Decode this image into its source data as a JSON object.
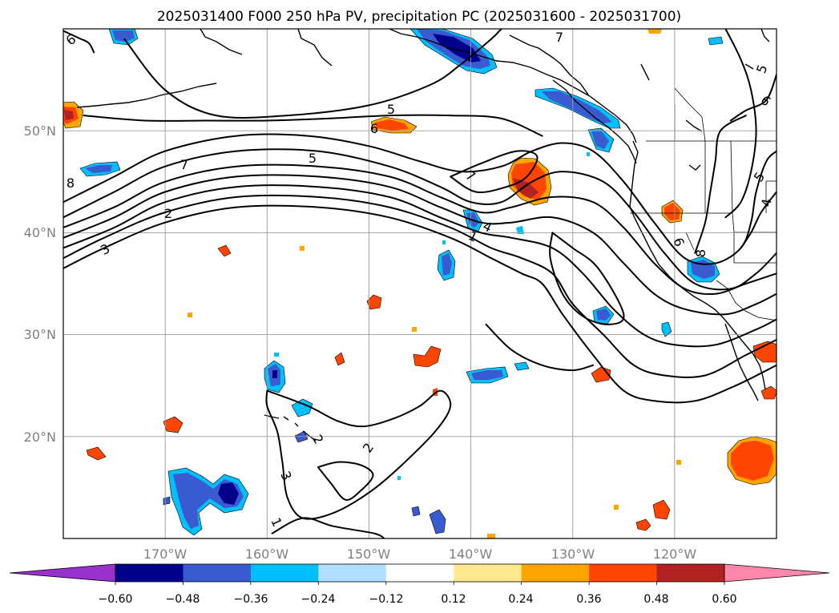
{
  "chart_data": {
    "type": "contour-map",
    "title": "2025031400 F000 250 hPa PV, precipitation PC (2025031600 - 2025031700)",
    "x_ticks": [
      "170°W",
      "160°W",
      "150°W",
      "140°W",
      "130°W",
      "120°W"
    ],
    "y_ticks": [
      "50°N",
      "40°N",
      "30°N",
      "20°N"
    ],
    "lon_range": [
      -180,
      -110
    ],
    "lat_range": [
      10,
      60
    ],
    "grid": true,
    "colorbar": {
      "orientation": "horizontal",
      "extend": "both",
      "levels": [
        -0.6,
        -0.48,
        -0.36,
        -0.24,
        -0.12,
        0.12,
        0.24,
        0.36,
        0.48,
        0.6
      ],
      "tick_labels": [
        "−0.60",
        "−0.48",
        "−0.36",
        "−0.24",
        "−0.12",
        "0.12",
        "0.24",
        "0.36",
        "0.48",
        "0.60"
      ],
      "colors": [
        "#9932cc",
        "#00008b",
        "#3a5bcf",
        "#00bfff",
        "#b0e0ff",
        "#ffffff",
        "#ffe98f",
        "#ffa500",
        "#ff4500",
        "#b22222",
        "#ff88aa"
      ]
    },
    "pv_contour_labels": [
      "6",
      "7",
      "5",
      "6",
      "5",
      "7",
      "2",
      "3",
      "8",
      "7",
      "4",
      "1",
      "6",
      "5",
      "4",
      "6",
      "8",
      "5",
      "2",
      "3",
      "1",
      "2"
    ],
    "pv_contours": [
      {
        "level": 1,
        "points": [
          [
            -180,
            36.5
          ],
          [
            -176,
            38.5
          ],
          [
            -170,
            41
          ],
          [
            -163,
            42.5
          ],
          [
            -155,
            42.5
          ],
          [
            -148,
            41.5
          ],
          [
            -142,
            39.5
          ],
          [
            -138,
            37.5
          ],
          [
            -135,
            36
          ],
          [
            -133,
            35
          ],
          [
            -131,
            32
          ],
          [
            -128,
            28
          ],
          [
            -125,
            24.5
          ],
          [
            -122,
            23.5
          ],
          [
            -118,
            23.5
          ],
          [
            -114,
            25
          ],
          [
            -110,
            27
          ]
        ]
      },
      {
        "level": 2,
        "points": [
          [
            -180,
            37.5
          ],
          [
            -176,
            39.5
          ],
          [
            -170,
            42
          ],
          [
            -163,
            43.5
          ],
          [
            -155,
            43.5
          ],
          [
            -148,
            42.5
          ],
          [
            -142,
            40.5
          ],
          [
            -138,
            38.5
          ],
          [
            -135,
            37.5
          ],
          [
            -132,
            36
          ],
          [
            -130,
            33
          ],
          [
            -127,
            30
          ],
          [
            -124,
            27
          ],
          [
            -121,
            26
          ],
          [
            -117,
            26
          ],
          [
            -113,
            28
          ],
          [
            -110,
            29.5
          ]
        ]
      },
      {
        "level": 3,
        "points": [
          [
            -180,
            38.5
          ],
          [
            -175,
            40.5
          ],
          [
            -170,
            43
          ],
          [
            -163,
            44.5
          ],
          [
            -155,
            44.5
          ],
          [
            -148,
            43.5
          ],
          [
            -143,
            41.5
          ],
          [
            -139,
            40
          ],
          [
            -136,
            39.5
          ],
          [
            -132,
            38.5
          ],
          [
            -129,
            36
          ],
          [
            -126,
            32.5
          ],
          [
            -123,
            30
          ],
          [
            -120,
            29
          ],
          [
            -116,
            29
          ],
          [
            -112,
            30.5
          ],
          [
            -110,
            31.5
          ]
        ]
      },
      {
        "level": 4,
        "points": [
          [
            -180,
            39.5
          ],
          [
            -175,
            41.5
          ],
          [
            -170,
            44
          ],
          [
            -163,
            45.5
          ],
          [
            -155,
            45.5
          ],
          [
            -148,
            44.5
          ],
          [
            -143,
            42.5
          ],
          [
            -139,
            41
          ],
          [
            -136,
            41
          ],
          [
            -132,
            41.5
          ],
          [
            -128,
            40
          ],
          [
            -125,
            37
          ],
          [
            -122,
            34
          ],
          [
            -119,
            32.5
          ],
          [
            -115,
            32
          ],
          [
            -112,
            33
          ],
          [
            -110,
            34
          ]
        ]
      },
      {
        "level": 5,
        "points": [
          [
            -180,
            40.5
          ],
          [
            -175,
            42.5
          ],
          [
            -170,
            45
          ],
          [
            -163,
            46.5
          ],
          [
            -155,
            46.5
          ],
          [
            -148,
            45.5
          ],
          [
            -143,
            43.5
          ],
          [
            -139,
            42
          ],
          [
            -136,
            42.5
          ],
          [
            -132,
            43.5
          ],
          [
            -128,
            43
          ],
          [
            -125,
            40.5
          ],
          [
            -122,
            37
          ],
          [
            -119,
            34.5
          ],
          [
            -116,
            34
          ],
          [
            -113,
            35
          ],
          [
            -110,
            36
          ]
        ]
      },
      {
        "level": 6,
        "points": [
          [
            -180,
            41.5
          ],
          [
            -175,
            44
          ],
          [
            -170,
            46.5
          ],
          [
            -163,
            48
          ],
          [
            -155,
            48
          ],
          [
            -148,
            46.5
          ],
          [
            -143,
            44.5
          ],
          [
            -140,
            43
          ],
          [
            -137,
            43
          ],
          [
            -134,
            45
          ],
          [
            -131,
            46
          ],
          [
            -127,
            45
          ],
          [
            -124,
            42
          ],
          [
            -121,
            38
          ],
          [
            -118,
            35
          ],
          [
            -114.5,
            34.5
          ],
          [
            -112,
            36
          ],
          [
            -110,
            38
          ]
        ]
      },
      {
        "level": 7,
        "points": [
          [
            -180,
            43
          ],
          [
            -175,
            45.5
          ],
          [
            -170,
            48
          ],
          [
            -163,
            49.5
          ],
          [
            -156,
            49.5
          ],
          [
            -150,
            48.5
          ],
          [
            -145,
            47
          ],
          [
            -141,
            46
          ],
          [
            -137,
            46.5
          ],
          [
            -134,
            48
          ],
          [
            -131,
            48.8
          ],
          [
            -128,
            48
          ],
          [
            -125,
            45
          ],
          [
            -122,
            41
          ],
          [
            -119,
            37.5
          ],
          [
            -116,
            37
          ],
          [
            -113.5,
            38.5
          ],
          [
            -112.5,
            41
          ],
          [
            -112,
            44
          ],
          [
            -111,
            47
          ],
          [
            -110,
            48
          ]
        ]
      },
      {
        "level": 5,
        "points": [
          [
            -174,
            59
          ],
          [
            -170,
            54
          ],
          [
            -165,
            51.5
          ],
          [
            -158,
            51.5
          ],
          [
            -150,
            52.5
          ],
          [
            -144,
            54.5
          ],
          [
            -141,
            56.5
          ],
          [
            -138,
            59
          ],
          [
            -137,
            60
          ]
        ]
      },
      {
        "level": 6,
        "points": [
          [
            -178,
            51.5
          ],
          [
            -172,
            51
          ],
          [
            -166,
            51
          ],
          [
            -160,
            51
          ],
          [
            -154,
            51.2
          ],
          [
            -148,
            51.5
          ],
          [
            -142,
            51.5
          ],
          [
            -137,
            51.2
          ],
          [
            -133,
            49.5
          ]
        ]
      },
      {
        "level": 8,
        "points": [
          [
            -118,
            38
          ],
          [
            -117,
            41
          ],
          [
            -116.5,
            44
          ],
          [
            -116,
            47
          ],
          [
            -115.5,
            50
          ],
          [
            -113,
            51.5
          ]
        ]
      },
      {
        "level": 5,
        "points": [
          [
            -115,
            60
          ],
          [
            -113.5,
            57
          ],
          [
            -112.5,
            54
          ],
          [
            -112,
            50
          ],
          [
            -112.5,
            46
          ],
          [
            -113.5,
            43
          ],
          [
            -115,
            41.5
          ]
        ]
      },
      {
        "level": 6,
        "points": [
          [
            -110,
            55.5
          ],
          [
            -111,
            53
          ],
          [
            -113,
            52
          ],
          [
            -114.5,
            51
          ]
        ]
      },
      {
        "level": 7,
        "points": [
          [
            -110,
            44
          ],
          [
            -111.5,
            42
          ],
          [
            -112.5,
            40
          ],
          [
            -113.5,
            38.5
          ]
        ]
      },
      {
        "level": 7,
        "points": [
          [
            -142,
            45.5
          ],
          [
            -139.5,
            44
          ],
          [
            -136.5,
            44.5
          ],
          [
            -134.5,
            45.5
          ],
          [
            -133.5,
            47.5
          ],
          [
            -135.5,
            48
          ],
          [
            -139,
            46.8
          ],
          [
            -142,
            45.5
          ]
        ]
      },
      {
        "level": 1,
        "points": [
          [
            -132,
            40
          ],
          [
            -130,
            38.5
          ],
          [
            -127.5,
            36.5
          ],
          [
            -125,
            32
          ],
          [
            -126.5,
            31
          ],
          [
            -129,
            31.8
          ],
          [
            -131,
            34
          ],
          [
            -132.2,
            37.5
          ],
          [
            -132,
            40
          ]
        ]
      },
      {
        "level": 2,
        "points": [
          [
            -138.5,
            31
          ],
          [
            -136,
            28.5
          ],
          [
            -133,
            27
          ],
          [
            -130,
            26.5
          ],
          [
            -128,
            27
          ]
        ]
      },
      {
        "level": 2,
        "points": [
          [
            -160,
            24.5
          ],
          [
            -156,
            23
          ],
          [
            -153,
            21.5
          ],
          [
            -150.5,
            21
          ],
          [
            -147.5,
            21.8
          ],
          [
            -145,
            23
          ],
          [
            -143,
            24.5
          ],
          [
            -142,
            23
          ],
          [
            -143.5,
            20.5
          ],
          [
            -147,
            17
          ],
          [
            -150,
            14.5
          ],
          [
            -153.5,
            12.5
          ],
          [
            -156.5,
            12
          ],
          [
            -158,
            14
          ],
          [
            -158.5,
            17.5
          ],
          [
            -159,
            20.5
          ],
          [
            -160,
            23
          ],
          [
            -160,
            24.5
          ]
        ]
      },
      {
        "level": 1,
        "points": [
          [
            -159.5,
            10.5
          ],
          [
            -156.5,
            12
          ],
          [
            -153.5,
            11.2
          ],
          [
            -149.5,
            10.5
          ],
          [
            -148.5,
            10
          ]
        ]
      },
      {
        "level": 3,
        "points": [
          [
            -155,
            17
          ],
          [
            -153.8,
            15.5
          ],
          [
            -152.3,
            13.8
          ],
          [
            -150.8,
            14.7
          ],
          [
            -149.6,
            16.2
          ],
          [
            -150.8,
            17.2
          ],
          [
            -153,
            17.5
          ],
          [
            -155,
            17
          ]
        ]
      },
      {
        "level": 6,
        "points": [
          [
            -180,
            59.8
          ],
          [
            -178.5,
            59.1
          ],
          [
            -177.5,
            58.6
          ],
          [
            -177,
            57.7
          ]
        ]
      }
    ]
  }
}
